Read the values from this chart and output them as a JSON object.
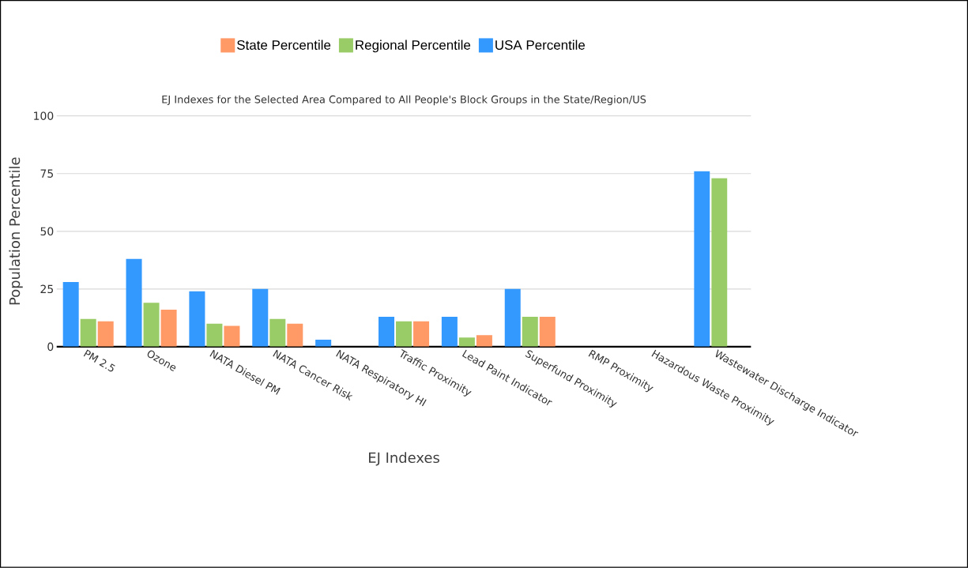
{
  "chart_data": {
    "type": "bar",
    "title": "EJ Indexes for the Selected Area Compared to All People's Block Groups in the State/Region/US",
    "xlabel": "EJ Indexes",
    "ylabel": "Population Percentile",
    "categories": [
      "PM 2.5",
      "Ozone",
      "NATA Diesel PM",
      "NATA Cancer Risk",
      "NATA Respiratory HI",
      "Traffic Proximity",
      "Lead Paint Indicator",
      "Superfund Proximity",
      "RMP Proximity",
      "Hazardous Waste Proximity",
      "Wastewater Discharge Indicator"
    ],
    "series": [
      {
        "name": "USA Percentile",
        "color": "#3399ff",
        "values": [
          28,
          38,
          24,
          25,
          3,
          13,
          13,
          25,
          null,
          null,
          76
        ]
      },
      {
        "name": "Regional Percentile",
        "color": "#99cc66",
        "values": [
          12,
          19,
          10,
          12,
          null,
          11,
          4,
          13,
          null,
          null,
          73
        ]
      },
      {
        "name": "State Percentile",
        "color": "#ff9966",
        "values": [
          11,
          16,
          9,
          10,
          null,
          11,
          5,
          13,
          null,
          null,
          null
        ]
      }
    ],
    "ylim": [
      0,
      100
    ],
    "yticks": [
      0,
      25,
      50,
      75,
      100
    ],
    "grid": "y",
    "legend": "top"
  }
}
